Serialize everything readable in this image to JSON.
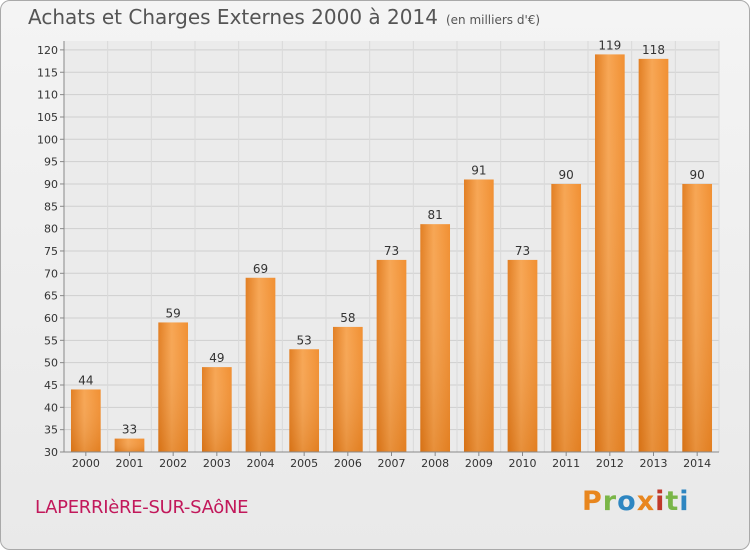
{
  "chart_data": {
    "type": "bar",
    "title": "Achats et Charges Externes 2000 à 2014",
    "subtitle": "(en milliers d'€)",
    "categories": [
      "2000",
      "2001",
      "2002",
      "2003",
      "2004",
      "2005",
      "2006",
      "2007",
      "2008",
      "2009",
      "2010",
      "2011",
      "2012",
      "2013",
      "2014"
    ],
    "values": [
      44,
      33,
      59,
      49,
      69,
      53,
      58,
      73,
      81,
      91,
      73,
      90,
      119,
      118,
      90
    ],
    "ylim": [
      30,
      122
    ],
    "yticks": [
      30,
      35,
      40,
      45,
      50,
      55,
      60,
      65,
      70,
      75,
      80,
      85,
      90,
      95,
      100,
      105,
      110,
      115,
      120
    ],
    "grid": true,
    "bar_color": "#f39c40",
    "bar_color_dark": "#e07818"
  },
  "footer": {
    "location": "LAPERRIèRE-SUR-SAôNE",
    "logo_text": "Proxiti",
    "logo_colors": [
      "#e8861e",
      "#7ab648",
      "#2e86c1",
      "#e8861e",
      "#c0392b",
      "#7ab648",
      "#2e86c1"
    ]
  }
}
